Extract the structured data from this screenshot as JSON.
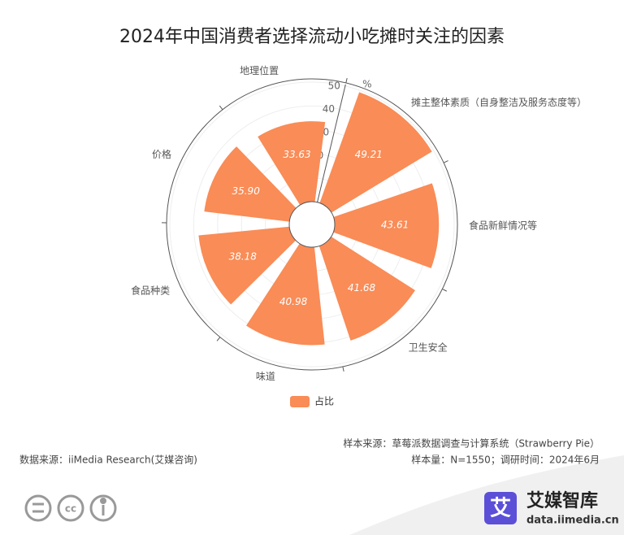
{
  "chart_data": {
    "type": "polar-bar",
    "title": "2024年中国消费者选择流动小吃摊时关注的因素",
    "unit": "%",
    "categories": [
      "摊主整体素质（自身整洁及服务态度等）",
      "食品新鲜情况等",
      "卫生安全",
      "味道",
      "食品种类",
      "价格",
      "地理位置"
    ],
    "series": [
      {
        "name": "占比",
        "color": "#f98c57",
        "values": [
          49.21,
          43.61,
          41.68,
          40.98,
          38.18,
          35.9,
          33.63
        ],
        "value_labels": [
          "49.21",
          "43.61",
          "41.68",
          "40.98",
          "38.18",
          "35.90",
          "33.63"
        ]
      }
    ],
    "ylim": [
      0,
      50
    ],
    "yticks": [
      0,
      10,
      20,
      30,
      40,
      50
    ],
    "grid": true
  },
  "footer": {
    "sample_source": "样本来源：草莓派数据调查与计算系统（Strawberry Pie）",
    "sample_size": "样本量：N=1550；调研时间：2024年6月",
    "data_source": "数据来源：iiMedia Research(艾媒咨询)",
    "brand": "艾媒智库",
    "brand_url": "data.iimedia.cn",
    "logo": "艾"
  }
}
